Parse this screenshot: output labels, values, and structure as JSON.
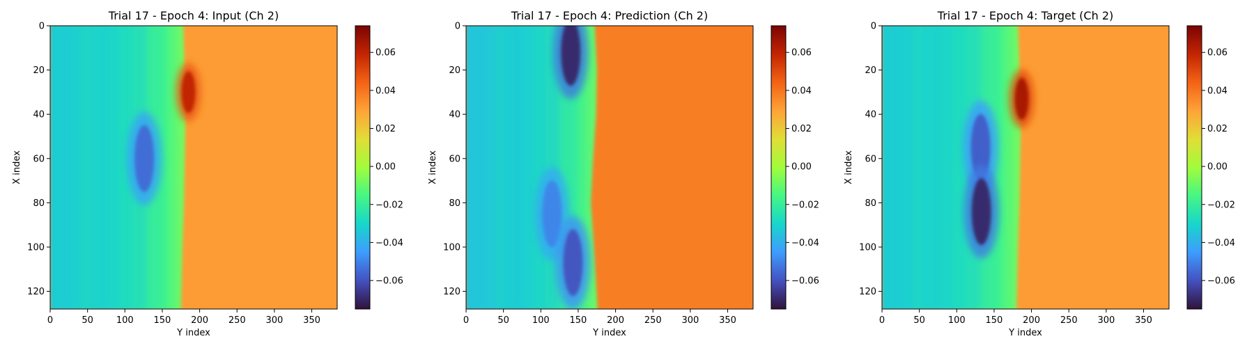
{
  "chart_data": [
    {
      "type": "heatmap",
      "title": "Trial 17 - Epoch 4: Input (Ch 2)",
      "xlabel": "Y index",
      "ylabel": "X index",
      "xlim": [
        0,
        384
      ],
      "ylim": [
        128,
        0
      ],
      "x_ticks": [
        0,
        50,
        100,
        150,
        200,
        250,
        300,
        350
      ],
      "y_ticks": [
        0,
        20,
        40,
        60,
        80,
        100,
        120
      ],
      "colorbar": {
        "colormap": "turbo",
        "vmin": -0.075,
        "vmax": 0.074,
        "ticks": [
          "0.06",
          "0.04",
          "0.02",
          "0.00",
          "−0.02",
          "−0.04",
          "−0.06"
        ],
        "tick_values": [
          0.06,
          0.04,
          0.02,
          0.0,
          -0.02,
          -0.04,
          -0.06
        ]
      },
      "field": {
        "background_left": -0.029,
        "background_right": 0.031,
        "front": [
          [
            0,
            178
          ],
          [
            20,
            180
          ],
          [
            40,
            181
          ],
          [
            60,
            180
          ],
          [
            80,
            179
          ],
          [
            100,
            177
          ],
          [
            128,
            175
          ]
        ],
        "features": [
          {
            "kind": "low",
            "y": 126,
            "x": 60,
            "value": -0.055
          },
          {
            "kind": "high",
            "y": 185,
            "x": 30,
            "value": 0.06
          }
        ]
      }
    },
    {
      "type": "heatmap",
      "title": "Trial 17 - Epoch 4: Prediction (Ch 2)",
      "xlabel": "Y index",
      "ylabel": "X index",
      "xlim": [
        0,
        384
      ],
      "ylim": [
        128,
        0
      ],
      "x_ticks": [
        0,
        50,
        100,
        150,
        200,
        250,
        300,
        350
      ],
      "y_ticks": [
        0,
        20,
        40,
        60,
        80,
        100,
        120
      ],
      "colorbar": {
        "colormap": "turbo",
        "vmin": -0.075,
        "vmax": 0.074,
        "ticks": [
          "0.06",
          "0.04",
          "0.02",
          "0.00",
          "−0.02",
          "−0.04",
          "−0.06"
        ],
        "tick_values": [
          0.06,
          0.04,
          0.02,
          0.0,
          -0.02,
          -0.04,
          -0.06
        ]
      },
      "field": {
        "background_left": -0.031,
        "background_right": 0.038,
        "front": [
          [
            0,
            172
          ],
          [
            20,
            175
          ],
          [
            40,
            174
          ],
          [
            60,
            170
          ],
          [
            80,
            167
          ],
          [
            100,
            171
          ],
          [
            128,
            176
          ]
        ],
        "features": [
          {
            "kind": "low",
            "y": 140,
            "x": 12,
            "value": -0.07
          },
          {
            "kind": "low",
            "y": 115,
            "x": 85,
            "value": -0.05
          },
          {
            "kind": "low",
            "y": 143,
            "x": 107,
            "value": -0.06
          }
        ]
      }
    },
    {
      "type": "heatmap",
      "title": "Trial 17 - Epoch 4: Target (Ch 2)",
      "xlabel": "Y index",
      "ylabel": "X index",
      "xlim": [
        0,
        384
      ],
      "ylim": [
        128,
        0
      ],
      "x_ticks": [
        0,
        50,
        100,
        150,
        200,
        250,
        300,
        350
      ],
      "y_ticks": [
        0,
        20,
        40,
        60,
        80,
        100,
        120
      ],
      "colorbar": {
        "colormap": "turbo",
        "vmin": -0.075,
        "vmax": 0.074,
        "ticks": [
          "0.06",
          "0.04",
          "0.02",
          "0.00",
          "−0.02",
          "−0.04",
          "−0.06"
        ],
        "tick_values": [
          0.06,
          0.04,
          0.02,
          0.0,
          -0.02,
          -0.04,
          -0.06
        ]
      },
      "field": {
        "background_left": -0.029,
        "background_right": 0.031,
        "front": [
          [
            0,
            182
          ],
          [
            20,
            184
          ],
          [
            40,
            186
          ],
          [
            60,
            185
          ],
          [
            80,
            184
          ],
          [
            100,
            182
          ],
          [
            128,
            180
          ]
        ],
        "features": [
          {
            "kind": "low",
            "y": 132,
            "x": 55,
            "value": -0.058
          },
          {
            "kind": "low",
            "y": 133,
            "x": 84,
            "value": -0.07
          },
          {
            "kind": "high",
            "y": 187,
            "x": 33,
            "value": 0.065
          }
        ]
      }
    }
  ]
}
